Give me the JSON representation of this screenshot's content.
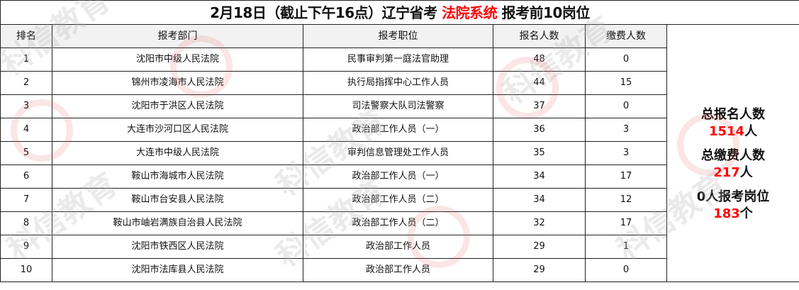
{
  "title": {
    "prefix": "2月18日（截止下午16点）辽宁省考 ",
    "highlight": "法院系统",
    "suffix": " 报考前10岗位"
  },
  "headers": [
    "排名",
    "报考部门",
    "报考职位",
    "报名人数",
    "缴费人数"
  ],
  "rows": [
    {
      "rank": "1",
      "dept": "沈阳市中级人民法院",
      "position": "民事审判第一庭法官助理",
      "applicants": "48",
      "paid": "0"
    },
    {
      "rank": "2",
      "dept": "锦州市凌海市人民法院",
      "position": "执行局指挥中心工作人员",
      "applicants": "44",
      "paid": "15"
    },
    {
      "rank": "3",
      "dept": "沈阳市于洪区人民法院",
      "position": "司法警察大队司法警察",
      "applicants": "37",
      "paid": "0"
    },
    {
      "rank": "4",
      "dept": "大连市沙河口区人民法院",
      "position": "政治部工作人员（一）",
      "applicants": "36",
      "paid": "3"
    },
    {
      "rank": "5",
      "dept": "大连市中级人民法院",
      "position": "审判信息管理处工作人员",
      "applicants": "35",
      "paid": "3"
    },
    {
      "rank": "6",
      "dept": "鞍山市海城市人民法院",
      "position": "政治部工作人员（一）",
      "applicants": "34",
      "paid": "17"
    },
    {
      "rank": "7",
      "dept": "鞍山市台安县人民法院",
      "position": "政治部工作人员（二）",
      "applicants": "34",
      "paid": "12"
    },
    {
      "rank": "8",
      "dept": "鞍山市岫岩满族自治县人民法院",
      "position": "政治部工作人员（二）",
      "applicants": "32",
      "paid": "17"
    },
    {
      "rank": "9",
      "dept": "沈阳市铁西区人民法院",
      "position": "政治部工作人员",
      "applicants": "29",
      "paid": "1"
    },
    {
      "rank": "10",
      "dept": "沈阳市法库县人民法院",
      "position": "政治部工作人员",
      "applicants": "29",
      "paid": "0"
    }
  ],
  "summary": {
    "total_label": "总报名人数",
    "total_value": "1514",
    "total_unit": "人",
    "paid_label": "总缴费人数",
    "paid_value": "217",
    "paid_unit": "人",
    "zero_label": "0人报考岗位",
    "zero_value": "183",
    "zero_unit": "个"
  },
  "watermark": {
    "text": "科信教育",
    "accent": "#ff0000"
  }
}
